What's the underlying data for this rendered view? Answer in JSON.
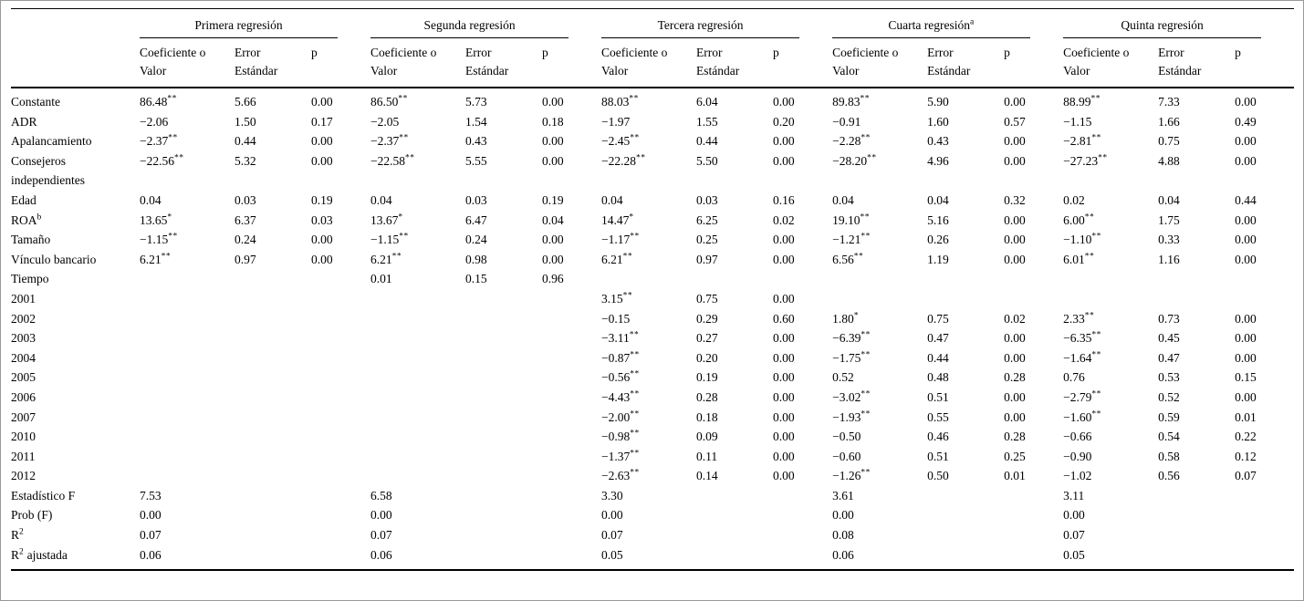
{
  "table": {
    "groups": [
      {
        "label": "Primera regresión"
      },
      {
        "label": "Segunda regresión"
      },
      {
        "label": "Tercera regresión"
      },
      {
        "label": "Cuarta regresión^{a}"
      },
      {
        "label": "Quinta regresión"
      }
    ],
    "subheaders": [
      "Coeficiente o Valor",
      "Error Estándar",
      "p"
    ],
    "rows": [
      {
        "label": "Constante",
        "cells": [
          "86.48^{**}",
          "5.66",
          "0.00",
          "86.50^{**}",
          "5.73",
          "0.00",
          "88.03^{**}",
          "6.04",
          "0.00",
          "89.83^{**}",
          "5.90",
          "0.00",
          "88.99^{**}",
          "7.33",
          "0.00"
        ]
      },
      {
        "label": "ADR",
        "cells": [
          "−2.06",
          "1.50",
          "0.17",
          "−2.05",
          "1.54",
          "0.18",
          "−1.97",
          "1.55",
          "0.20",
          "−0.91",
          "1.60",
          "0.57",
          "−1.15",
          "1.66",
          "0.49"
        ]
      },
      {
        "label": "Apalancamiento",
        "cells": [
          "−2.37^{**}",
          "0.44",
          "0.00",
          "−2.37^{**}",
          "0.43",
          "0.00",
          "−2.45^{**}",
          "0.44",
          "0.00",
          "−2.28^{**}",
          "0.43",
          "0.00",
          "−2.81^{**}",
          "0.75",
          "0.00"
        ]
      },
      {
        "label": "Consejeros independientes",
        "cells": [
          "−22.56^{**}",
          "5.32",
          "0.00",
          "−22.58^{**}",
          "5.55",
          "0.00",
          "−22.28^{**}",
          "5.50",
          "0.00",
          "−28.20^{**}",
          "4.96",
          "0.00",
          "−27.23^{**}",
          "4.88",
          "0.00"
        ]
      },
      {
        "label": "Edad",
        "cells": [
          "0.04",
          "0.03",
          "0.19",
          "0.04",
          "0.03",
          "0.19",
          "0.04",
          "0.03",
          "0.16",
          "0.04",
          "0.04",
          "0.32",
          "0.02",
          "0.04",
          "0.44"
        ]
      },
      {
        "label": "ROA^{b}",
        "cells": [
          "13.65^{*}",
          "6.37",
          "0.03",
          "13.67^{*}",
          "6.47",
          "0.04",
          "14.47^{*}",
          "6.25",
          "0.02",
          "19.10^{**}",
          "5.16",
          "0.00",
          "6.00^{**}",
          "1.75",
          "0.00"
        ]
      },
      {
        "label": "Tamaño",
        "cells": [
          "−1.15^{**}",
          "0.24",
          "0.00",
          "−1.15^{**}",
          "0.24",
          "0.00",
          "−1.17^{**}",
          "0.25",
          "0.00",
          "−1.21^{**}",
          "0.26",
          "0.00",
          "−1.10^{**}",
          "0.33",
          "0.00"
        ]
      },
      {
        "label": "Vínculo bancario",
        "cells": [
          "6.21^{**}",
          "0.97",
          "0.00",
          "6.21^{**}",
          "0.98",
          "0.00",
          "6.21^{**}",
          "0.97",
          "0.00",
          "6.56^{**}",
          "1.19",
          "0.00",
          "6.01^{**}",
          "1.16",
          "0.00"
        ]
      },
      {
        "label": "Tiempo",
        "cells": [
          null,
          null,
          null,
          "0.01",
          "0.15",
          "0.96",
          null,
          null,
          null,
          null,
          null,
          null,
          null,
          null,
          null
        ]
      },
      {
        "label": "2001",
        "cells": [
          null,
          null,
          null,
          null,
          null,
          null,
          "3.15^{**}",
          "0.75",
          "0.00",
          null,
          null,
          null,
          null,
          null,
          null
        ]
      },
      {
        "label": "2002",
        "cells": [
          null,
          null,
          null,
          null,
          null,
          null,
          "−0.15",
          "0.29",
          "0.60",
          "1.80^{*}",
          "0.75",
          "0.02",
          "2.33^{**}",
          "0.73",
          "0.00"
        ]
      },
      {
        "label": "2003",
        "cells": [
          null,
          null,
          null,
          null,
          null,
          null,
          "−3.11^{**}",
          "0.27",
          "0.00",
          "−6.39^{**}",
          "0.47",
          "0.00",
          "−6.35^{**}",
          "0.45",
          "0.00"
        ]
      },
      {
        "label": "2004",
        "cells": [
          null,
          null,
          null,
          null,
          null,
          null,
          "−0.87^{**}",
          "0.20",
          "0.00",
          "−1.75^{**}",
          "0.44",
          "0.00",
          "−1.64^{**}",
          "0.47",
          "0.00"
        ]
      },
      {
        "label": "2005",
        "cells": [
          null,
          null,
          null,
          null,
          null,
          null,
          "−0.56^{**}",
          "0.19",
          "0.00",
          "0.52",
          "0.48",
          "0.28",
          "0.76",
          "0.53",
          "0.15"
        ]
      },
      {
        "label": "2006",
        "cells": [
          null,
          null,
          null,
          null,
          null,
          null,
          "−4.43^{**}",
          "0.28",
          "0.00",
          "−3.02^{**}",
          "0.51",
          "0.00",
          "−2.79^{**}",
          "0.52",
          "0.00"
        ]
      },
      {
        "label": "2007",
        "cells": [
          null,
          null,
          null,
          null,
          null,
          null,
          "−2.00^{**}",
          "0.18",
          "0.00",
          "−1.93^{**}",
          "0.55",
          "0.00",
          "−1.60^{**}",
          "0.59",
          "0.01"
        ]
      },
      {
        "label": "2010",
        "cells": [
          null,
          null,
          null,
          null,
          null,
          null,
          "−0.98^{**}",
          "0.09",
          "0.00",
          "−0.50",
          "0.46",
          "0.28",
          "−0.66",
          "0.54",
          "0.22"
        ]
      },
      {
        "label": "2011",
        "cells": [
          null,
          null,
          null,
          null,
          null,
          null,
          "−1.37^{**}",
          "0.11",
          "0.00",
          "−0.60",
          "0.51",
          "0.25",
          "−0.90",
          "0.58",
          "0.12"
        ]
      },
      {
        "label": "2012",
        "cells": [
          null,
          null,
          null,
          null,
          null,
          null,
          "−2.63^{**}",
          "0.14",
          "0.00",
          "−1.26^{**}",
          "0.50",
          "0.01",
          "−1.02",
          "0.56",
          "0.07"
        ]
      },
      {
        "label": "Estadístico F",
        "cells": [
          "7.53",
          null,
          null,
          "6.58",
          null,
          null,
          "3.30",
          null,
          null,
          "3.61",
          null,
          null,
          "3.11",
          null,
          null
        ]
      },
      {
        "label": "Prob (F)",
        "cells": [
          "0.00",
          null,
          null,
          "0.00",
          null,
          null,
          "0.00",
          null,
          null,
          "0.00",
          null,
          null,
          "0.00",
          null,
          null
        ]
      },
      {
        "label": "R^{2}",
        "cells": [
          "0.07",
          null,
          null,
          "0.07",
          null,
          null,
          "0.07",
          null,
          null,
          "0.08",
          null,
          null,
          "0.07",
          null,
          null
        ]
      },
      {
        "label": "R^{2} ajustada",
        "cells": [
          "0.06",
          null,
          null,
          "0.06",
          null,
          null,
          "0.05",
          null,
          null,
          "0.06",
          null,
          null,
          "0.05",
          null,
          null
        ]
      }
    ]
  }
}
